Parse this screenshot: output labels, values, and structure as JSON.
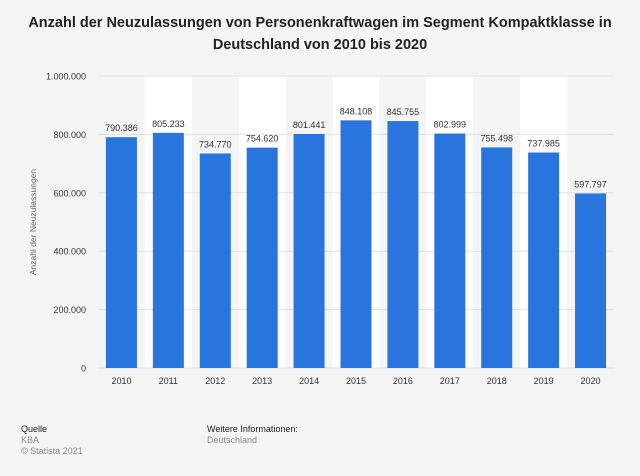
{
  "chart_data": {
    "type": "bar",
    "title": "Anzahl der Neuzulassungen von Personenkraftwagen im Segment Kompaktklasse in Deutschland von 2010 bis 2020",
    "categories": [
      "2010",
      "2011",
      "2012",
      "2013",
      "2014",
      "2015",
      "2016",
      "2017",
      "2018",
      "2019",
      "2020"
    ],
    "values": [
      790386,
      805233,
      734770,
      754620,
      801441,
      848108,
      845755,
      802999,
      755498,
      737985,
      597797
    ],
    "data_labels": [
      "790.386",
      "805.233",
      "734.770",
      "754.620",
      "801.441",
      "848.108",
      "845.755",
      "802.999",
      "755.498",
      "737.985",
      "597.797"
    ],
    "ylabel": "Anzahl der Neuzulassungen",
    "xlabel": "",
    "ylim": [
      0,
      1000000
    ],
    "yticks": [
      0,
      200000,
      400000,
      600000,
      800000,
      1000000
    ],
    "ytick_labels": [
      "0",
      "200.000",
      "400.000",
      "600.000",
      "800.000",
      "1.000.000"
    ],
    "grid": true,
    "bar_color": "#2876dd"
  },
  "footer": {
    "source_label": "Quelle",
    "source": "KBA",
    "copyright": "© Statista 2021",
    "info_label": "Weitere Informationen:",
    "info": "Deutschland"
  }
}
